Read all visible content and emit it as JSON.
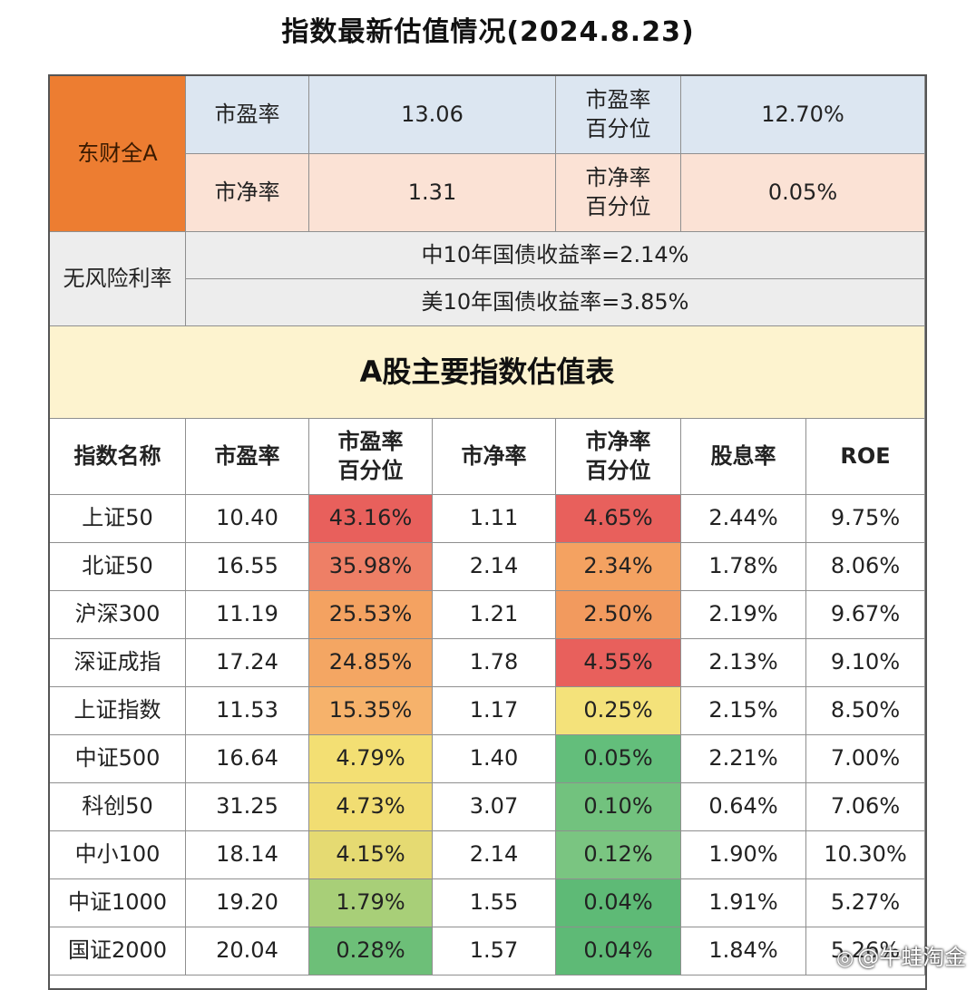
{
  "title": "指数最新估值情况(2024.8.23)",
  "summary": {
    "index_name": "东财全A",
    "pe_label": "市盈率",
    "pe_value": "13.06",
    "pe_pct_label": "市盈率\n百分位",
    "pe_pct_value": "12.70%",
    "pb_label": "市净率",
    "pb_value": "1.31",
    "pb_pct_label": "市净率\n百分位",
    "pb_pct_value": "0.05%"
  },
  "risk_free": {
    "label": "无风险利率",
    "cn_yield": "中10年国债收益率=2.14%",
    "us_yield": "美10年国债收益率=3.85%"
  },
  "table_title": "A股主要指数估值表",
  "columns": [
    "指数名称",
    "市盈率",
    "市盈率\n百分位",
    "市净率",
    "市净率\n百分位",
    "股息率",
    "ROE"
  ],
  "rows": [
    {
      "name": "上证50",
      "pe": "10.40",
      "pe_pct": "43.16%",
      "pb": "1.11",
      "pb_pct": "4.65%",
      "div": "2.44%",
      "roe": "9.75%",
      "pe_color": "#e8605c",
      "pb_color": "#e8605c"
    },
    {
      "name": "北证50",
      "pe": "16.55",
      "pe_pct": "35.98%",
      "pb": "2.14",
      "pb_pct": "2.34%",
      "div": "1.78%",
      "roe": "8.06%",
      "pe_color": "#ee7f66",
      "pb_color": "#f4a261"
    },
    {
      "name": "沪深300",
      "pe": "11.19",
      "pe_pct": "25.53%",
      "pb": "1.21",
      "pb_pct": "2.50%",
      "div": "2.19%",
      "roe": "9.67%",
      "pe_color": "#f4a261",
      "pb_color": "#f29a5e"
    },
    {
      "name": "深证成指",
      "pe": "17.24",
      "pe_pct": "24.85%",
      "pb": "1.78",
      "pb_pct": "4.55%",
      "div": "2.13%",
      "roe": "9.10%",
      "pe_color": "#f4a663",
      "pb_color": "#e8605c"
    },
    {
      "name": "上证指数",
      "pe": "11.53",
      "pe_pct": "15.35%",
      "pb": "1.17",
      "pb_pct": "0.25%",
      "div": "2.15%",
      "roe": "8.50%",
      "pe_color": "#f6b26b",
      "pb_color": "#f4e27a"
    },
    {
      "name": "中证500",
      "pe": "16.64",
      "pe_pct": "4.79%",
      "pb": "1.40",
      "pb_pct": "0.05%",
      "div": "2.21%",
      "roe": "7.00%",
      "pe_color": "#f3df73",
      "pb_color": "#63be7b"
    },
    {
      "name": "科创50",
      "pe": "31.25",
      "pe_pct": "4.73%",
      "pb": "3.07",
      "pb_pct": "0.10%",
      "div": "0.64%",
      "roe": "7.06%",
      "pe_color": "#f1dd72",
      "pb_color": "#72c27e"
    },
    {
      "name": "中小100",
      "pe": "18.14",
      "pe_pct": "4.15%",
      "pb": "2.14",
      "pb_pct": "0.12%",
      "div": "1.90%",
      "roe": "10.30%",
      "pe_color": "#e5da72",
      "pb_color": "#7ac581"
    },
    {
      "name": "中证1000",
      "pe": "19.20",
      "pe_pct": "1.79%",
      "pb": "1.55",
      "pb_pct": "0.04%",
      "div": "1.91%",
      "roe": "5.27%",
      "pe_color": "#a8cf78",
      "pb_color": "#5eba76"
    },
    {
      "name": "国证2000",
      "pe": "20.04",
      "pe_pct": "0.28%",
      "pb": "1.57",
      "pb_pct": "0.04%",
      "div": "1.84%",
      "roe": "5.26%",
      "pe_color": "#6dbf78",
      "pb_color": "#5eba76"
    }
  ],
  "watermark": "@牛蛙淘金",
  "watermark_icon": "weibo-icon"
}
